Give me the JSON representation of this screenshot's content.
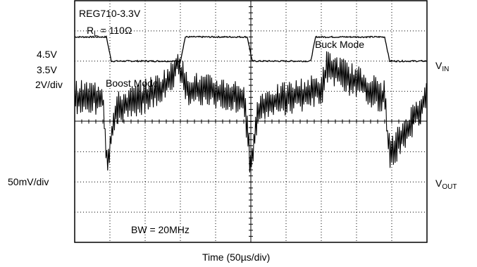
{
  "chart_data": {
    "type": "line",
    "annotations": {
      "device": "REG710-3.3V",
      "load_prefix": "R",
      "load_sub": "L",
      "load_value": "= 110Ω",
      "buck_mode": "Buck Mode",
      "boost_mode": "Boost Mode",
      "bandwidth": "BW = 20MHz"
    },
    "left_labels": {
      "vin_high": "4.5V",
      "vin_low": "3.5V",
      "vin_scale": "2V/div",
      "vout_scale": "50mV/div"
    },
    "right_labels": {
      "vin_main": "V",
      "vin_sub": "IN",
      "vout_main": "V",
      "vout_sub": "OUT"
    },
    "xlabel": "Time (50µs/div)",
    "grid": true,
    "xlim": [
      0,
      500
    ],
    "series": [
      {
        "channel": "vin",
        "unit": "V",
        "ylim": [
          -4,
          6
        ],
        "x": [
          0,
          20,
          45,
          52,
          150,
          157,
          245,
          252,
          335,
          342,
          440,
          447,
          500
        ],
        "values": [
          4.5,
          4.5,
          4.5,
          3.5,
          3.5,
          4.5,
          4.5,
          3.5,
          3.5,
          4.5,
          4.5,
          3.5,
          3.5
        ]
      },
      {
        "channel": "vout",
        "unit": "mV",
        "ylim": [
          -150,
          100
        ],
        "baseline": 0,
        "ripple": 18,
        "x": [
          0,
          40,
          44,
          46,
          52,
          60,
          120,
          138,
          146,
          158,
          240,
          246,
          250,
          258,
          266,
          350,
          354,
          358,
          440,
          444,
          448,
          500
        ],
        "values": [
          0,
          0,
          -50,
          -70,
          -40,
          -12,
          8,
          20,
          38,
          10,
          0,
          -45,
          -70,
          -22,
          -8,
          8,
          18,
          32,
          0,
          -40,
          -60,
          0
        ]
      }
    ]
  }
}
